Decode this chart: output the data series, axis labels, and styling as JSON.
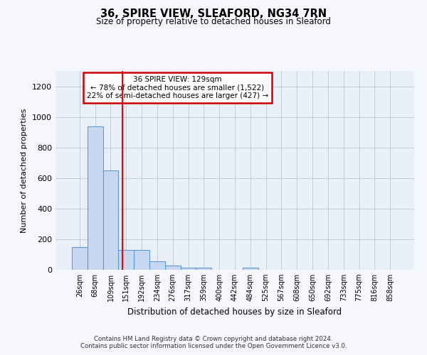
{
  "title1": "36, SPIRE VIEW, SLEAFORD, NG34 7RN",
  "title2": "Size of property relative to detached houses in Sleaford",
  "xlabel": "Distribution of detached houses by size in Sleaford",
  "ylabel": "Number of detached properties",
  "bin_labels": [
    "26sqm",
    "68sqm",
    "109sqm",
    "151sqm",
    "192sqm",
    "234sqm",
    "276sqm",
    "317sqm",
    "359sqm",
    "400sqm",
    "442sqm",
    "484sqm",
    "525sqm",
    "567sqm",
    "608sqm",
    "650sqm",
    "692sqm",
    "733sqm",
    "775sqm",
    "816sqm",
    "858sqm"
  ],
  "bar_heights": [
    150,
    940,
    650,
    130,
    130,
    58,
    28,
    14,
    14,
    0,
    0,
    14,
    0,
    0,
    0,
    0,
    0,
    0,
    0,
    0,
    0
  ],
  "bar_color": "#c8d8f0",
  "bar_edge_color": "#5b9bd5",
  "red_line_x": 2.78,
  "ylim": [
    0,
    1300
  ],
  "yticks": [
    0,
    200,
    400,
    600,
    800,
    1000,
    1200
  ],
  "annotation_text": "36 SPIRE VIEW: 129sqm\n← 78% of detached houses are smaller (1,522)\n22% of semi-detached houses are larger (427) →",
  "annotation_box_color": "#ffffff",
  "annotation_box_edge": "#cc0000",
  "footer_line1": "Contains HM Land Registry data © Crown copyright and database right 2024.",
  "footer_line2": "Contains public sector information licensed under the Open Government Licence v3.0.",
  "plot_bg_color": "#eaf0f8"
}
